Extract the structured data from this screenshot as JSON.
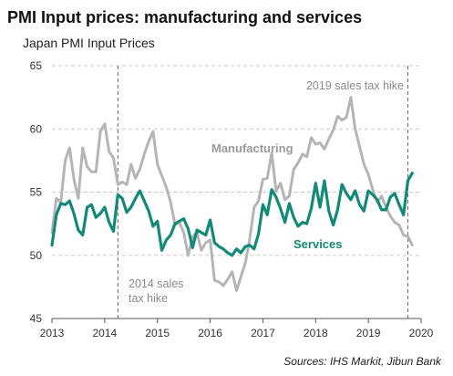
{
  "chart_data": {
    "type": "line",
    "title": "PMI Input prices: manufacturing and services",
    "subtitle": "Japan PMI  Input Prices",
    "source": "Sources: IHS Markit, Jibun Bank",
    "ylim": [
      45,
      65
    ],
    "xlim": [
      2013,
      2020
    ],
    "y_ticks": [
      "45",
      "50",
      "55",
      "60",
      "65"
    ],
    "x_ticks": [
      "2013",
      "2014",
      "2015",
      "2016",
      "2017",
      "2018",
      "2019",
      "2020"
    ],
    "grid": "horizontal dashed",
    "series": [
      {
        "name": "Manufacturing",
        "color": "#b5b5b5",
        "x": [
          2013.0,
          2013.083,
          2013.167,
          2013.25,
          2013.333,
          2013.417,
          2013.5,
          2013.583,
          2013.667,
          2013.75,
          2013.833,
          2013.917,
          2014.0,
          2014.083,
          2014.167,
          2014.25,
          2014.333,
          2014.417,
          2014.5,
          2014.583,
          2014.667,
          2014.75,
          2014.833,
          2014.917,
          2015.0,
          2015.083,
          2015.167,
          2015.25,
          2015.333,
          2015.417,
          2015.5,
          2015.583,
          2015.667,
          2015.75,
          2015.833,
          2015.917,
          2016.0,
          2016.083,
          2016.167,
          2016.25,
          2016.333,
          2016.417,
          2016.5,
          2016.583,
          2016.667,
          2016.75,
          2016.833,
          2016.917,
          2017.0,
          2017.083,
          2017.167,
          2017.25,
          2017.333,
          2017.417,
          2017.5,
          2017.583,
          2017.667,
          2017.75,
          2017.833,
          2017.917,
          2018.0,
          2018.083,
          2018.167,
          2018.25,
          2018.333,
          2018.417,
          2018.5,
          2018.583,
          2018.667,
          2018.75,
          2018.833,
          2018.917,
          2019.0,
          2019.083,
          2019.167,
          2019.25,
          2019.333,
          2019.417,
          2019.5,
          2019.583,
          2019.667,
          2019.75,
          2019.833
        ],
        "values": [
          51.8,
          54.5,
          54.2,
          57.5,
          58.5,
          56.0,
          54.5,
          58.5,
          57.0,
          56.6,
          56.6,
          59.8,
          60.4,
          58.2,
          57.7,
          55.6,
          55.8,
          55.6,
          57.2,
          56.1,
          56.8,
          58.0,
          59.0,
          59.8,
          57.2,
          56.3,
          55.4,
          54.2,
          52.4,
          52.6,
          51.8,
          50.0,
          51.5,
          51.8,
          50.4,
          51.0,
          51.2,
          48.0,
          47.9,
          47.6,
          48.1,
          48.7,
          47.2,
          48.3,
          49.4,
          51.3,
          53.8,
          54.3,
          56.0,
          56.1,
          58.1,
          55.1,
          55.7,
          54.4,
          54.7,
          56.8,
          57.3,
          58.0,
          57.8,
          59.3,
          58.8,
          58.9,
          58.4,
          59.2,
          59.9,
          61.0,
          60.7,
          60.9,
          62.5,
          60.0,
          58.6,
          57.2,
          56.4,
          55.2,
          54.2,
          54.7,
          53.8,
          53.1,
          52.6,
          52.4,
          51.6,
          51.5,
          50.8
        ]
      },
      {
        "name": "Services",
        "color": "#138a78",
        "x": [
          2013.0,
          2013.083,
          2013.167,
          2013.25,
          2013.333,
          2013.417,
          2013.5,
          2013.583,
          2013.667,
          2013.75,
          2013.833,
          2013.917,
          2014.0,
          2014.083,
          2014.167,
          2014.25,
          2014.333,
          2014.417,
          2014.5,
          2014.583,
          2014.667,
          2014.75,
          2014.833,
          2014.917,
          2015.0,
          2015.083,
          2015.167,
          2015.25,
          2015.333,
          2015.417,
          2015.5,
          2015.583,
          2015.667,
          2015.75,
          2015.833,
          2015.917,
          2016.0,
          2016.083,
          2016.167,
          2016.25,
          2016.333,
          2016.417,
          2016.5,
          2016.583,
          2016.667,
          2016.75,
          2016.833,
          2016.917,
          2017.0,
          2017.083,
          2017.167,
          2017.25,
          2017.333,
          2017.417,
          2017.5,
          2017.583,
          2017.667,
          2017.75,
          2017.833,
          2017.917,
          2018.0,
          2018.083,
          2018.167,
          2018.25,
          2018.333,
          2018.417,
          2018.5,
          2018.583,
          2018.667,
          2018.75,
          2018.833,
          2018.917,
          2019.0,
          2019.083,
          2019.167,
          2019.25,
          2019.333,
          2019.417,
          2019.5,
          2019.583,
          2019.667,
          2019.75,
          2019.833
        ],
        "values": [
          50.8,
          53.2,
          54.1,
          54.0,
          54.3,
          53.3,
          52.0,
          51.6,
          53.8,
          54.0,
          53.0,
          53.3,
          53.8,
          52.6,
          51.9,
          54.8,
          54.5,
          53.4,
          53.8,
          54.5,
          55.1,
          54.3,
          53.5,
          52.3,
          52.7,
          50.4,
          51.2,
          51.6,
          52.5,
          52.7,
          52.9,
          52.1,
          50.6,
          52.0,
          51.8,
          51.6,
          52.8,
          51.0,
          50.7,
          50.5,
          50.2,
          50.0,
          50.5,
          50.2,
          50.7,
          50.8,
          50.5,
          51.7,
          54.0,
          53.2,
          55.2,
          54.6,
          53.7,
          52.6,
          54.1,
          53.0,
          52.3,
          52.6,
          52.5,
          53.7,
          55.7,
          53.8,
          55.9,
          53.5,
          52.4,
          53.6,
          55.6,
          54.9,
          54.4,
          55.1,
          54.0,
          53.5,
          55.1,
          54.8,
          54.4,
          53.6,
          53.6,
          54.6,
          54.9,
          54.0,
          53.2,
          55.9,
          56.5
        ]
      }
    ],
    "annotations": [
      {
        "text": "2019 sales tax hike",
        "x": 2019.75,
        "type": "vline"
      },
      {
        "text_lines": [
          "2014 sales",
          "tax hike"
        ],
        "x": 2014.25,
        "type": "vline"
      },
      {
        "text": "Manufacturing",
        "type": "series-label"
      },
      {
        "text": "Services",
        "type": "series-label"
      }
    ]
  }
}
